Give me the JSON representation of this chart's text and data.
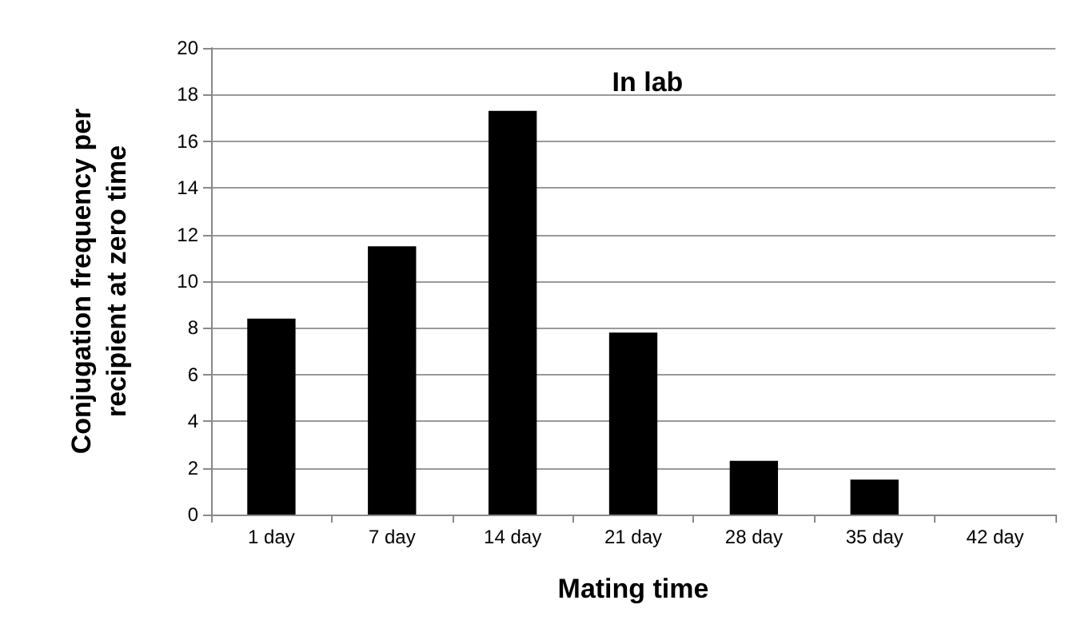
{
  "chart_data": {
    "type": "bar",
    "title": "In lab",
    "xlabel": "Mating time",
    "ylabel": "Conjugation frequency per\nrecipient at zero time",
    "categories": [
      "1 day",
      "7 day",
      "14 day",
      "21 day",
      "28 day",
      "35 day",
      "42 day"
    ],
    "values": [
      8.4,
      11.5,
      17.3,
      7.8,
      2.3,
      1.5,
      0
    ],
    "color": "#000000",
    "ylim": [
      0,
      20
    ],
    "yticks": [
      0,
      2,
      4,
      6,
      8,
      10,
      12,
      14,
      16,
      18,
      20
    ],
    "grid": "y"
  }
}
